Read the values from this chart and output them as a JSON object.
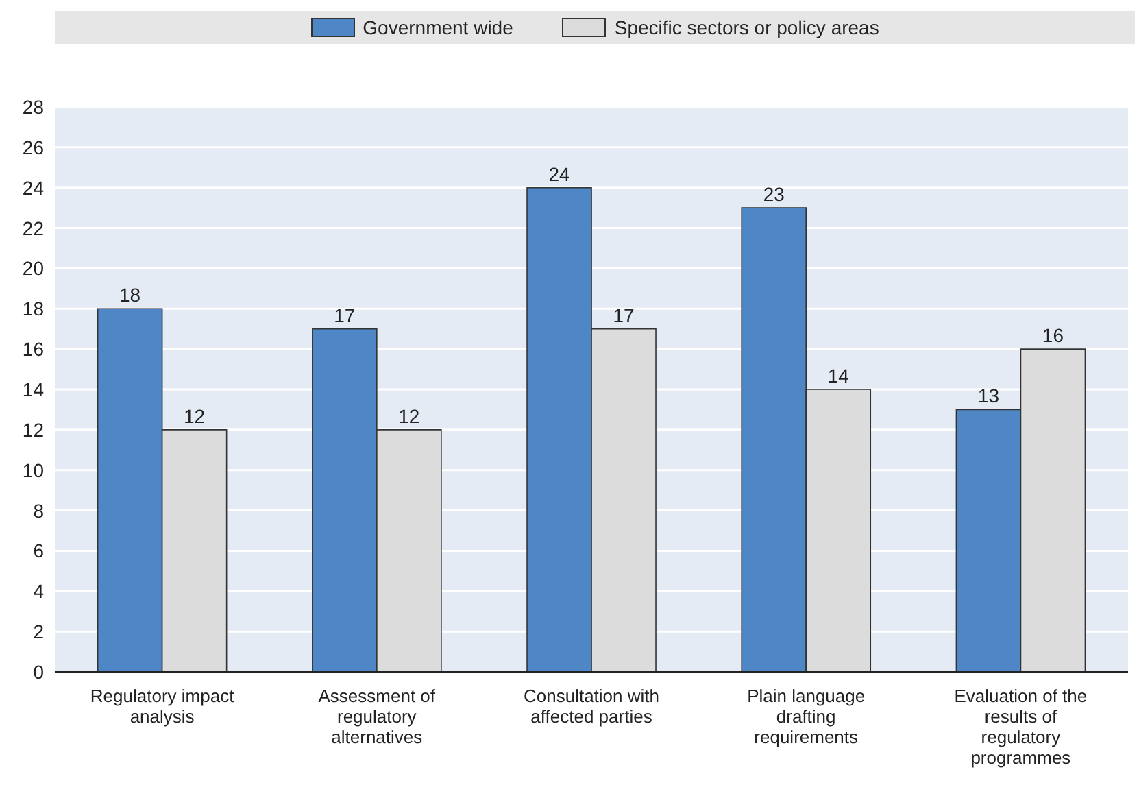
{
  "chart_data": {
    "type": "bar",
    "categories": [
      "Regulatory impact analysis",
      "Assessment of regulatory alternatives",
      "Consultation with affected parties",
      "Plain language drafting requirements",
      "Evaluation of the results of regulatory programmes"
    ],
    "series": [
      {
        "name": "Government wide",
        "color": "#4e86c6",
        "values": [
          18,
          17,
          24,
          23,
          13
        ]
      },
      {
        "name": "Specific sectors or policy areas",
        "color": "#dcdcdc",
        "values": [
          12,
          12,
          17,
          14,
          16
        ]
      }
    ],
    "ylim": [
      0,
      28
    ],
    "yticks": [
      0,
      2,
      4,
      6,
      8,
      10,
      12,
      14,
      16,
      18,
      20,
      22,
      24,
      26,
      28
    ],
    "grid": "y",
    "legend": "top",
    "data_labels": true
  }
}
